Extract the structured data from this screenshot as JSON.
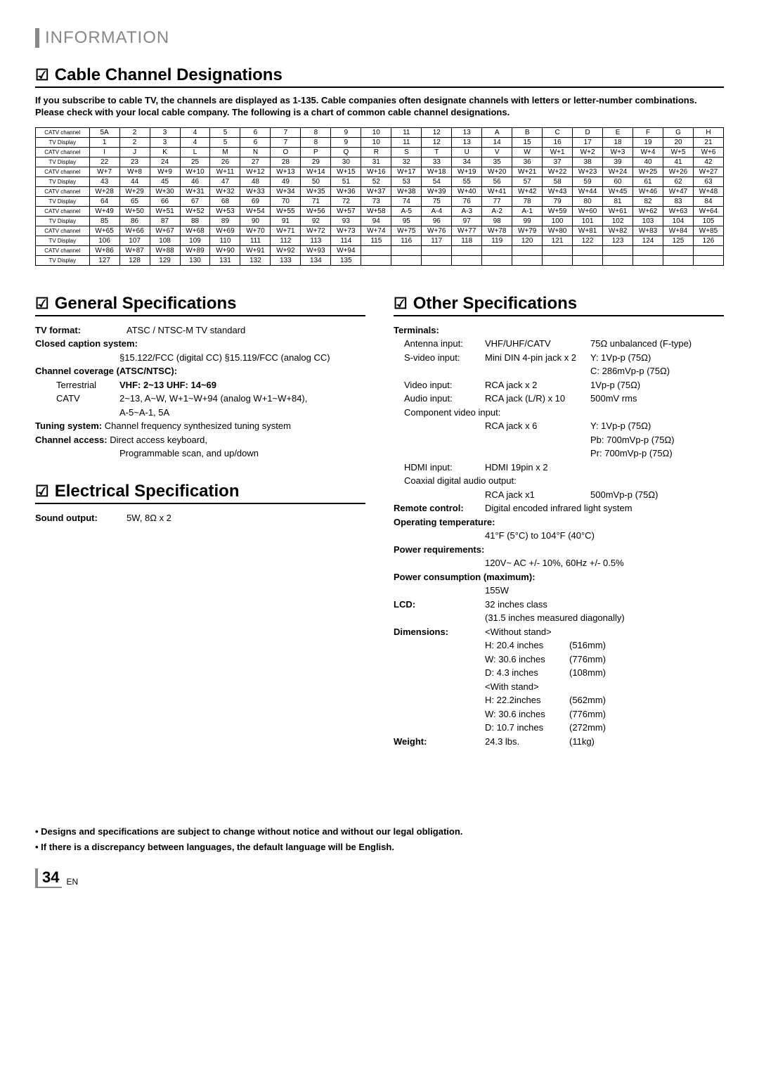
{
  "header": {
    "title": "INFORMATION"
  },
  "section1": {
    "title": "Cable Channel Designations",
    "intro": "If you subscribe to cable TV, the channels are displayed as 1-135. Cable companies often designate channels with letters or letter-number combinations. Please check with your local cable company. The following is a chart of common cable channel designations.",
    "row_label_catv": "CATV channel",
    "row_label_tv": "TV Display",
    "rows": [
      [
        "5A",
        "2",
        "3",
        "4",
        "5",
        "6",
        "7",
        "8",
        "9",
        "10",
        "11",
        "12",
        "13",
        "A",
        "B",
        "C",
        "D",
        "E",
        "F",
        "G",
        "H"
      ],
      [
        "1",
        "2",
        "3",
        "4",
        "5",
        "6",
        "7",
        "8",
        "9",
        "10",
        "11",
        "12",
        "13",
        "14",
        "15",
        "16",
        "17",
        "18",
        "19",
        "20",
        "21"
      ],
      [
        "I",
        "J",
        "K",
        "L",
        "M",
        "N",
        "O",
        "P",
        "Q",
        "R",
        "S",
        "T",
        "U",
        "V",
        "W",
        "W+1",
        "W+2",
        "W+3",
        "W+4",
        "W+5",
        "W+6"
      ],
      [
        "22",
        "23",
        "24",
        "25",
        "26",
        "27",
        "28",
        "29",
        "30",
        "31",
        "32",
        "33",
        "34",
        "35",
        "36",
        "37",
        "38",
        "39",
        "40",
        "41",
        "42"
      ],
      [
        "W+7",
        "W+8",
        "W+9",
        "W+10",
        "W+11",
        "W+12",
        "W+13",
        "W+14",
        "W+15",
        "W+16",
        "W+17",
        "W+18",
        "W+19",
        "W+20",
        "W+21",
        "W+22",
        "W+23",
        "W+24",
        "W+25",
        "W+26",
        "W+27"
      ],
      [
        "43",
        "44",
        "45",
        "46",
        "47",
        "48",
        "49",
        "50",
        "51",
        "52",
        "53",
        "54",
        "55",
        "56",
        "57",
        "58",
        "59",
        "60",
        "61",
        "62",
        "63"
      ],
      [
        "W+28",
        "W+29",
        "W+30",
        "W+31",
        "W+32",
        "W+33",
        "W+34",
        "W+35",
        "W+36",
        "W+37",
        "W+38",
        "W+39",
        "W+40",
        "W+41",
        "W+42",
        "W+43",
        "W+44",
        "W+45",
        "W+46",
        "W+47",
        "W+48"
      ],
      [
        "64",
        "65",
        "66",
        "67",
        "68",
        "69",
        "70",
        "71",
        "72",
        "73",
        "74",
        "75",
        "76",
        "77",
        "78",
        "79",
        "80",
        "81",
        "82",
        "83",
        "84"
      ],
      [
        "W+49",
        "W+50",
        "W+51",
        "W+52",
        "W+53",
        "W+54",
        "W+55",
        "W+56",
        "W+57",
        "W+58",
        "A-5",
        "A-4",
        "A-3",
        "A-2",
        "A-1",
        "W+59",
        "W+60",
        "W+61",
        "W+62",
        "W+63",
        "W+64"
      ],
      [
        "85",
        "86",
        "87",
        "88",
        "89",
        "90",
        "91",
        "92",
        "93",
        "94",
        "95",
        "96",
        "97",
        "98",
        "99",
        "100",
        "101",
        "102",
        "103",
        "104",
        "105"
      ],
      [
        "W+65",
        "W+66",
        "W+67",
        "W+68",
        "W+69",
        "W+70",
        "W+71",
        "W+72",
        "W+73",
        "W+74",
        "W+75",
        "W+76",
        "W+77",
        "W+78",
        "W+79",
        "W+80",
        "W+81",
        "W+82",
        "W+83",
        "W+84",
        "W+85"
      ],
      [
        "106",
        "107",
        "108",
        "109",
        "110",
        "111",
        "112",
        "113",
        "114",
        "115",
        "116",
        "117",
        "118",
        "119",
        "120",
        "121",
        "122",
        "123",
        "124",
        "125",
        "126"
      ],
      [
        "W+86",
        "W+87",
        "W+88",
        "W+89",
        "W+90",
        "W+91",
        "W+92",
        "W+93",
        "W+94",
        "",
        "",
        "",
        "",
        "",
        "",
        "",
        "",
        "",
        "",
        "",
        ""
      ],
      [
        "127",
        "128",
        "129",
        "130",
        "131",
        "132",
        "133",
        "134",
        "135",
        "",
        "",
        "",
        "",
        "",
        "",
        "",
        "",
        "",
        "",
        "",
        ""
      ]
    ]
  },
  "general": {
    "title": "General Specifications",
    "tv_format_label": "TV format:",
    "tv_format": "ATSC / NTSC-M TV standard",
    "cc_label": "Closed caption system:",
    "cc": "§15.122/FCC (digital CC)    §15.119/FCC (analog CC)",
    "coverage_label": "Channel coverage (ATSC/NTSC):",
    "terrestrial_label": "Terrestrial",
    "terrestrial": "VHF:  2~13    UHF:  14~69",
    "catv_label": "CATV",
    "catv1": "2~13, A~W, W+1~W+94 (analog W+1~W+84),",
    "catv2": "A-5~A-1, 5A",
    "tuning_label": "Tuning system:",
    "tuning": "Channel frequency synthesized tuning system",
    "access_label": "Channel access:",
    "access1": "Direct access keyboard,",
    "access2": "Programmable scan, and up/down"
  },
  "electrical": {
    "title": "Electrical Specification",
    "sound_label": "Sound output:",
    "sound": "5W, 8Ω x 2"
  },
  "other": {
    "title": "Other Specifications",
    "terminals_label": "Terminals:",
    "antenna_label": "Antenna input:",
    "antenna_val": "VHF/UHF/CATV",
    "antenna_spec": "75Ω unbalanced (F-type)",
    "svideo_label": "S-video input:",
    "svideo_val": "Mini DIN 4-pin jack x 2",
    "svideo_y": "Y: 1Vp-p (75Ω)",
    "svideo_c": "C: 286mVp-p (75Ω)",
    "video_label": "Video input:",
    "video_val": "RCA jack x 2",
    "video_spec": "1Vp-p (75Ω)",
    "audio_label": "Audio input:",
    "audio_val": "RCA jack (L/R) x 10",
    "audio_spec": "500mV rms",
    "component_label": "Component video input:",
    "component_val": "RCA jack x 6",
    "component_y": "Y:   1Vp-p (75Ω)",
    "component_pb": "Pb: 700mVp-p (75Ω)",
    "component_pr": "Pr:  700mVp-p (75Ω)",
    "hdmi_label": "HDMI input:",
    "hdmi_val": "HDMI 19pin x 2",
    "coax_label": "Coaxial digital audio output:",
    "coax_val": "RCA jack x1",
    "coax_spec": "500mVp-p (75Ω)",
    "remote_label": "Remote control:",
    "remote_val": "Digital encoded infrared light system",
    "optemp_label": "Operating temperature:",
    "optemp": "41°F (5°C) to 104°F (40°C)",
    "power_req_label": "Power requirements:",
    "power_req": "120V~ AC +/- 10%, 60Hz +/- 0.5%",
    "power_cons_label": "Power consumption (maximum):",
    "power_cons": "155W",
    "lcd_label": "LCD:",
    "lcd1": "32 inches class",
    "lcd2": "(31.5 inches measured diagonally)",
    "dim_label": "Dimensions:",
    "dim_wo": "<Without stand>",
    "dim_wo_h": "H:  20.4 inches",
    "dim_wo_h_mm": "(516mm)",
    "dim_wo_w": "W: 30.6 inches",
    "dim_wo_w_mm": "(776mm)",
    "dim_wo_d": "D:  4.3 inches",
    "dim_wo_d_mm": "(108mm)",
    "dim_w": "<With stand>",
    "dim_w_h": "H:  22.2inches",
    "dim_w_h_mm": "(562mm)",
    "dim_w_w": "W: 30.6 inches",
    "dim_w_w_mm": "(776mm)",
    "dim_w_d": "D:  10.7 inches",
    "dim_w_d_mm": "(272mm)",
    "weight_label": "Weight:",
    "weight": "24.3 lbs.",
    "weight_kg": "(11kg)"
  },
  "footer": {
    "note1": "• Designs and specifications are subject to change without notice and without our legal obligation.",
    "note2": "• If there is a discrepancy between languages, the default language will be English.",
    "page": "34",
    "en": "EN"
  }
}
